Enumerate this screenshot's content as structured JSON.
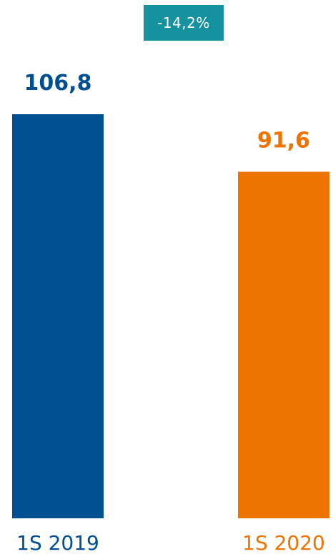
{
  "change_badge": {
    "label": "-14,2%",
    "color": "#16919e"
  },
  "chart_data": {
    "type": "bar",
    "categories": [
      "1S 2019",
      "1S 2020"
    ],
    "values": [
      106.8,
      91.6
    ],
    "value_labels": [
      "106,8",
      "91,6"
    ],
    "colors": [
      "#004f90",
      "#ee7402"
    ],
    "title": "",
    "xlabel": "",
    "ylabel": "",
    "ylim": [
      0,
      106.8
    ],
    "grid": false,
    "legend": "none"
  }
}
